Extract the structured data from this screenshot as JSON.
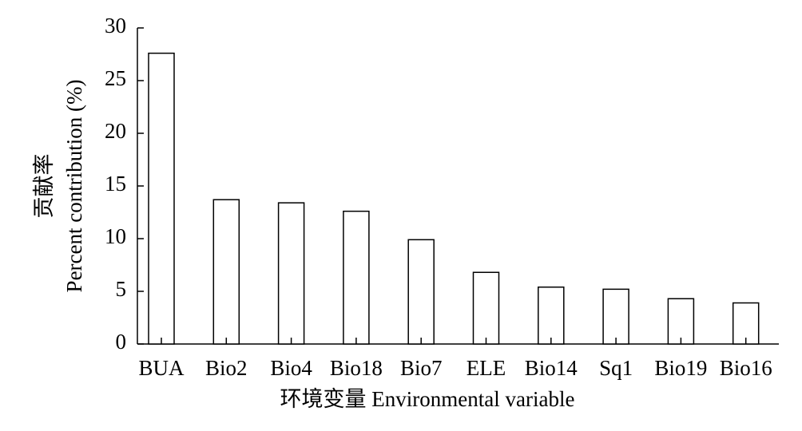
{
  "chart_data": {
    "type": "bar",
    "x_label": "环境变量 Environmental variable",
    "y_label": [
      "贡献率",
      "Percent contribution (%)"
    ],
    "categories": [
      "BUA",
      "Bio2",
      "Bio4",
      "Bio18",
      "Bio7",
      "ELE",
      "Bio14",
      "Sq1",
      "Bio19",
      "Bio16"
    ],
    "values": [
      27.6,
      13.7,
      13.4,
      12.6,
      9.9,
      6.8,
      5.4,
      5.2,
      4.3,
      3.9
    ],
    "color": "#ffffff",
    "ylim": [
      0,
      30
    ],
    "yticks": [
      0,
      5,
      10,
      15,
      20,
      25,
      30
    ],
    "grid": false
  }
}
